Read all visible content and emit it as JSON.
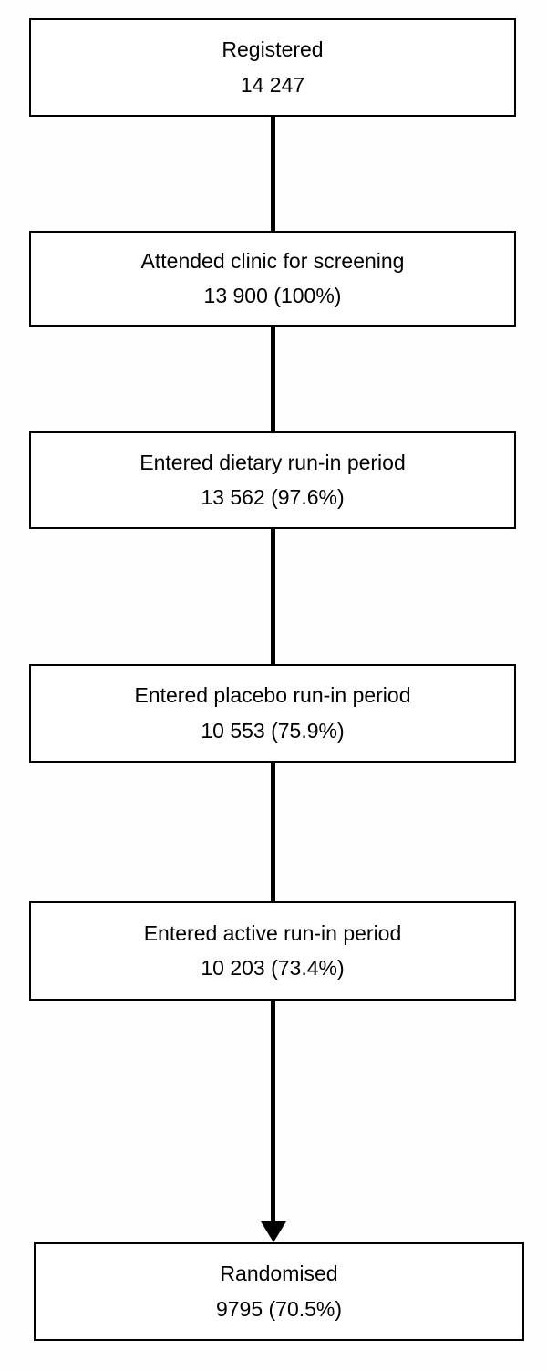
{
  "figure": {
    "kind": "trial-flow-diagram",
    "colors": {
      "box_border": "#000000",
      "box_fill": "#ffffff",
      "text": "#000000",
      "connector": "#000000",
      "page_background": "#fefefe"
    }
  },
  "nodes": [
    {
      "label": "Registered",
      "value": "14 247"
    },
    {
      "label": "Attended clinic for screening",
      "value": "13 900 (100%)"
    },
    {
      "label": "Entered dietary run-in period",
      "value": "13 562 (97.6%)"
    },
    {
      "label": "Entered placebo run-in period",
      "value": "10 553 (75.9%)"
    },
    {
      "label": "Entered active run-in period",
      "value": "10 203 (73.4%)"
    },
    {
      "label": "Randomised",
      "value": "9795 (70.5%)"
    }
  ],
  "connectors": [
    {
      "from": 0,
      "to": 1,
      "style": "line"
    },
    {
      "from": 1,
      "to": 2,
      "style": "line"
    },
    {
      "from": 2,
      "to": 3,
      "style": "line"
    },
    {
      "from": 3,
      "to": 4,
      "style": "line"
    },
    {
      "from": 4,
      "to": 5,
      "style": "arrow"
    }
  ]
}
